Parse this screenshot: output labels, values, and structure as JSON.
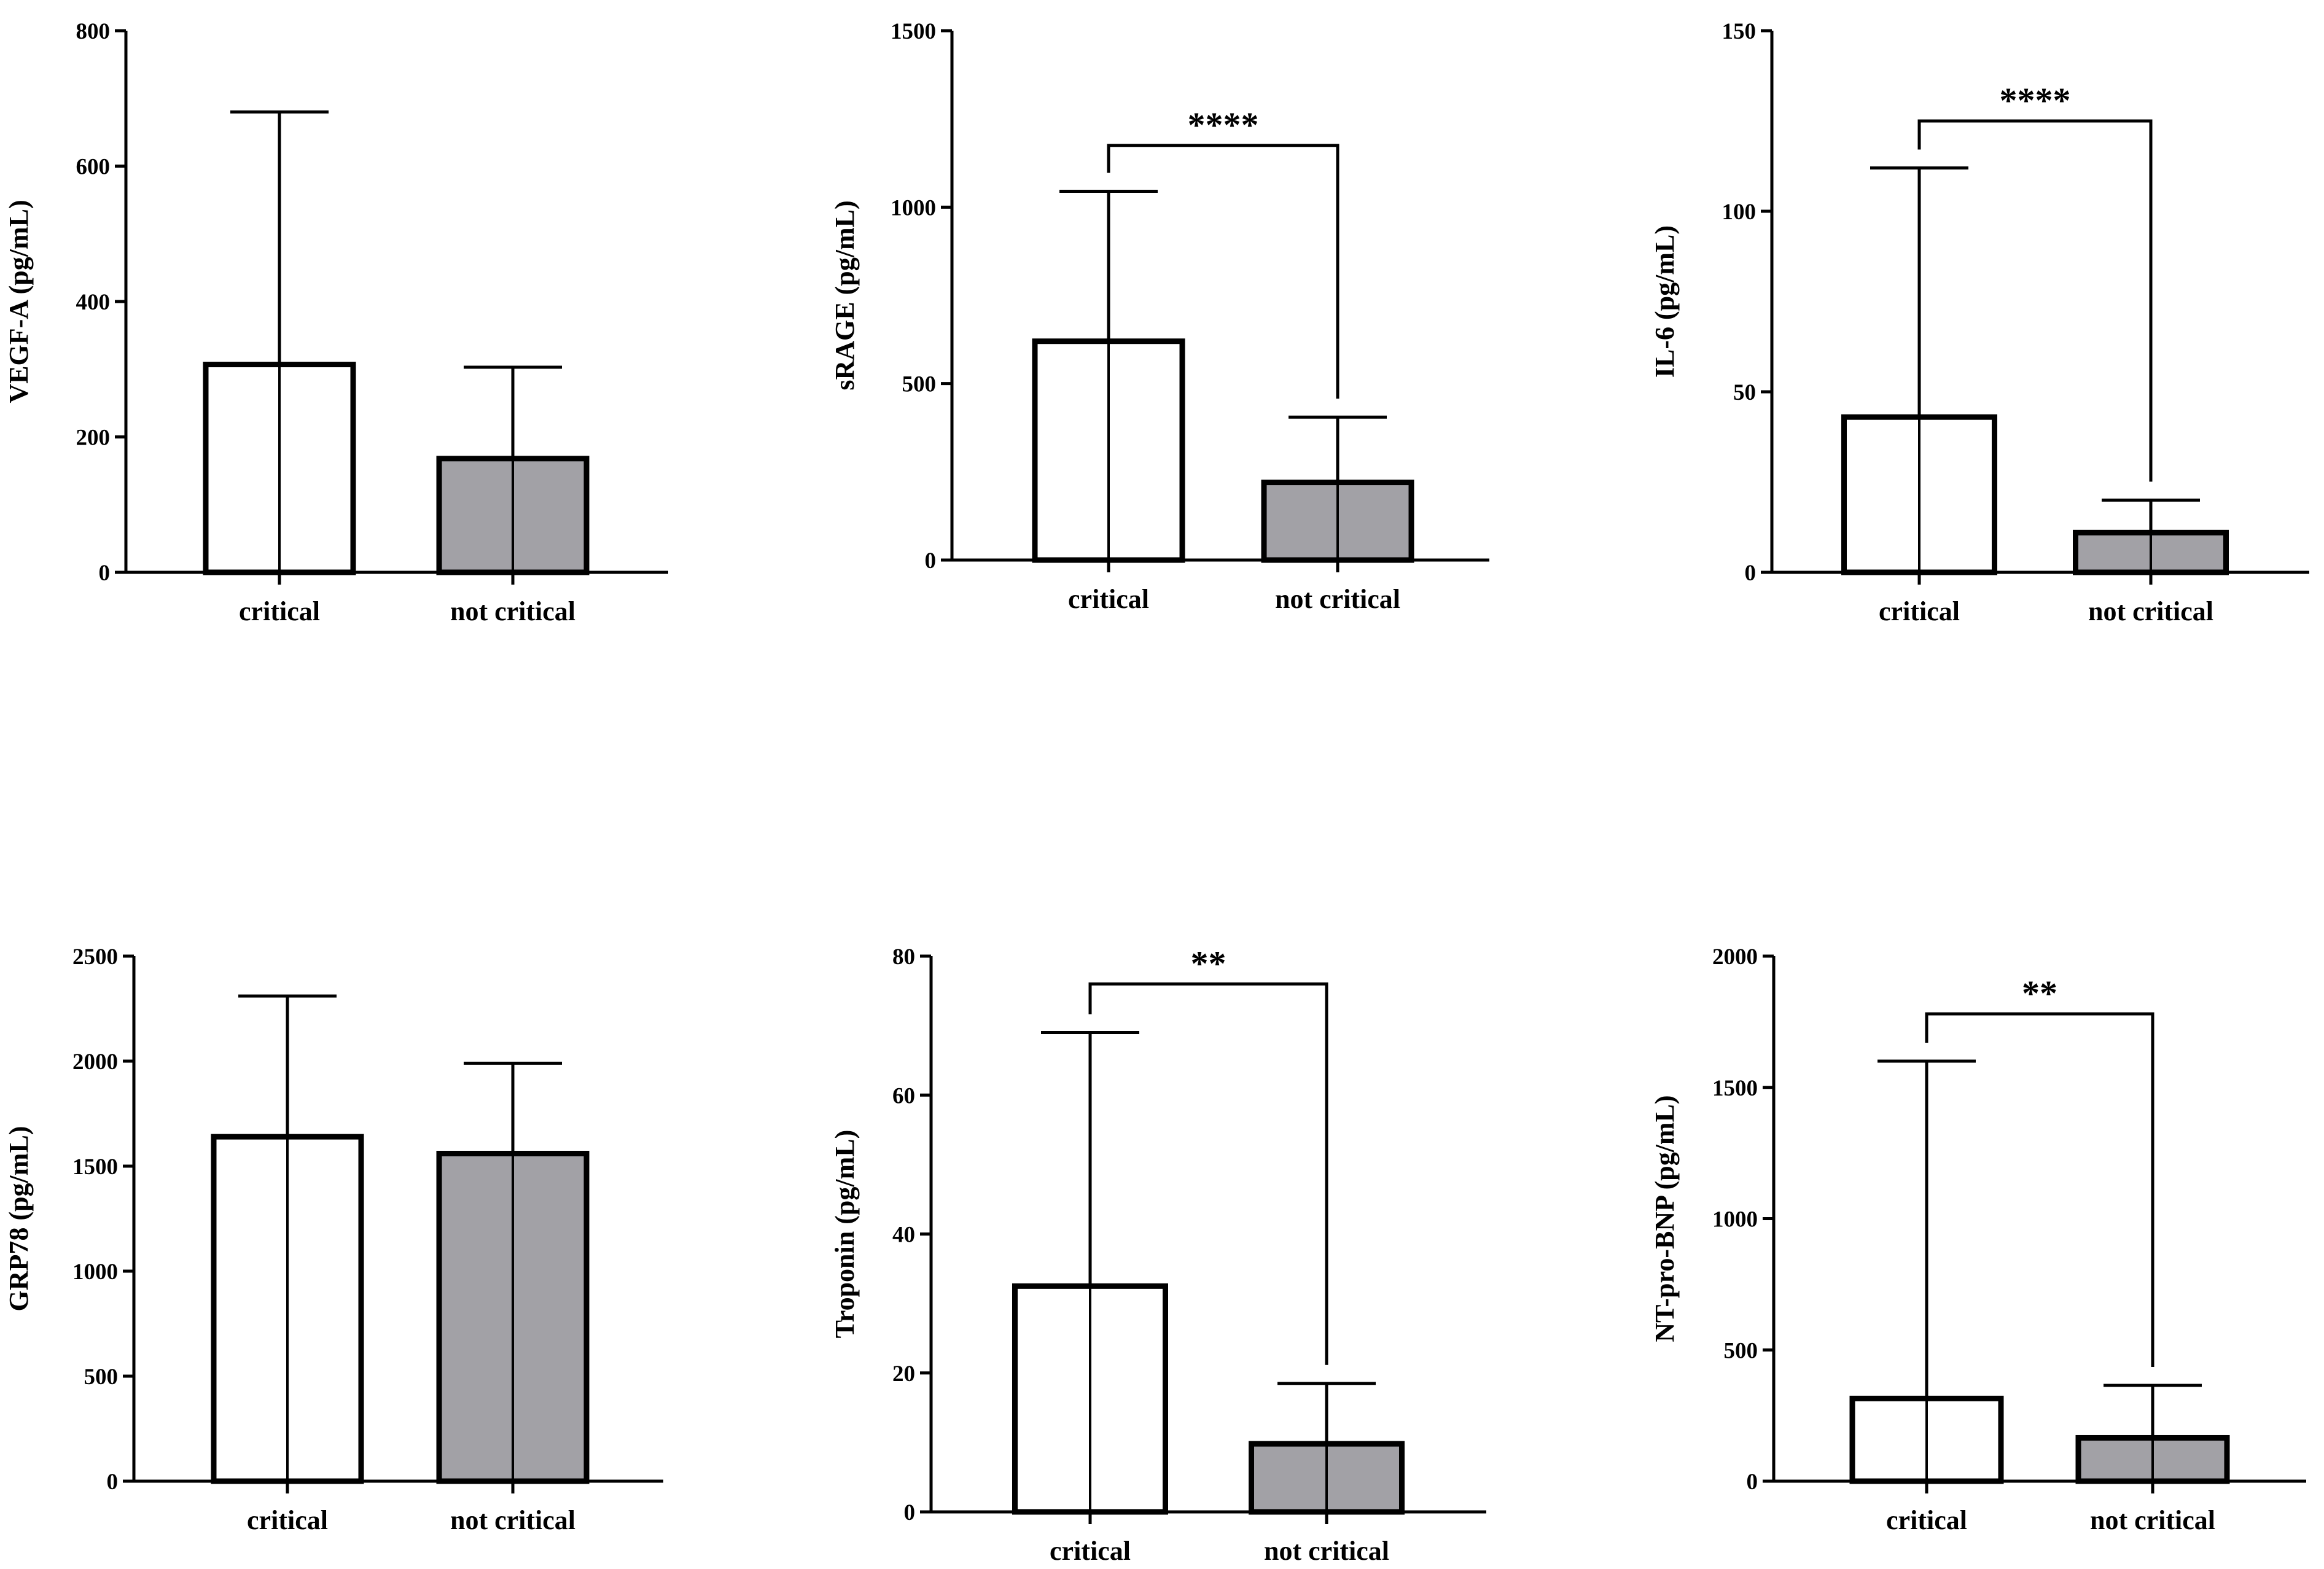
{
  "chart_data": [
    {
      "type": "bar",
      "title": "",
      "xlabel": "",
      "ylabel": "VEGF-A (pg/mL)",
      "categories": [
        "critical",
        "not critical"
      ],
      "values": [
        307,
        168
      ],
      "error_upper": [
        680,
        303
      ],
      "ylim": [
        0,
        800
      ],
      "yticks": [
        0,
        200,
        400,
        600,
        800
      ],
      "ytick_labels": [
        "0",
        "200",
        "400",
        "600",
        "800"
      ],
      "significance": null
    },
    {
      "type": "bar",
      "title": "",
      "xlabel": "",
      "ylabel": "sRAGE (pg/mL)",
      "categories": [
        "critical",
        "not critical"
      ],
      "values": [
        620,
        220
      ],
      "error_upper": [
        1045,
        405
      ],
      "ylim": [
        0,
        1500
      ],
      "yticks": [
        0,
        500,
        1000,
        1500
      ],
      "ytick_labels": [
        "0",
        "500",
        "1000",
        "1500"
      ],
      "significance": {
        "label": "****",
        "bracket_y": 1175
      }
    },
    {
      "type": "bar",
      "title": "",
      "xlabel": "",
      "ylabel": "IL-6 (pg/mL)",
      "categories": [
        "critical",
        "not critical"
      ],
      "values": [
        43,
        11
      ],
      "error_upper": [
        112,
        20
      ],
      "ylim": [
        0,
        150
      ],
      "yticks": [
        0,
        50,
        100,
        150
      ],
      "ytick_labels": [
        "0",
        "50",
        "100",
        "150"
      ],
      "significance": {
        "label": "****",
        "bracket_y": 125
      }
    },
    {
      "type": "bar",
      "title": "",
      "xlabel": "",
      "ylabel": "GRP78 (pg/mL)",
      "categories": [
        "critical",
        "not critical"
      ],
      "values": [
        1640,
        1560
      ],
      "error_upper": [
        2310,
        1990
      ],
      "ylim": [
        0,
        2500
      ],
      "yticks": [
        0,
        500,
        1000,
        1500,
        2000,
        2500
      ],
      "ytick_labels": [
        "0",
        "500",
        "1000",
        "1500",
        "2000",
        "2500"
      ],
      "significance": null
    },
    {
      "type": "bar",
      "title": "",
      "xlabel": "",
      "ylabel": "Troponin (pg/mL)",
      "categories": [
        "critical",
        "not critical"
      ],
      "values": [
        32.5,
        9.8
      ],
      "error_upper": [
        69,
        18.5
      ],
      "ylim": [
        0,
        80
      ],
      "yticks": [
        0,
        20,
        40,
        60,
        80
      ],
      "ytick_labels": [
        "0",
        "20",
        "40",
        "60",
        "80"
      ],
      "significance": {
        "label": "**",
        "bracket_y": 76
      }
    },
    {
      "type": "bar",
      "title": "",
      "xlabel": "",
      "ylabel": "NT-pro-BNP (pg/mL)",
      "categories": [
        "critical",
        "not critical"
      ],
      "values": [
        315,
        165
      ],
      "error_upper": [
        1600,
        365
      ],
      "ylim": [
        0,
        2000
      ],
      "yticks": [
        0,
        500,
        1000,
        1500,
        2000
      ],
      "ytick_labels": [
        "0",
        "500",
        "1000",
        "1500",
        "2000"
      ],
      "significance": {
        "label": "**",
        "bracket_y": 1780
      }
    }
  ],
  "colors": {
    "bar_fills": [
      "#ffffff",
      "#a2a1a6"
    ],
    "stroke": "#000000"
  }
}
